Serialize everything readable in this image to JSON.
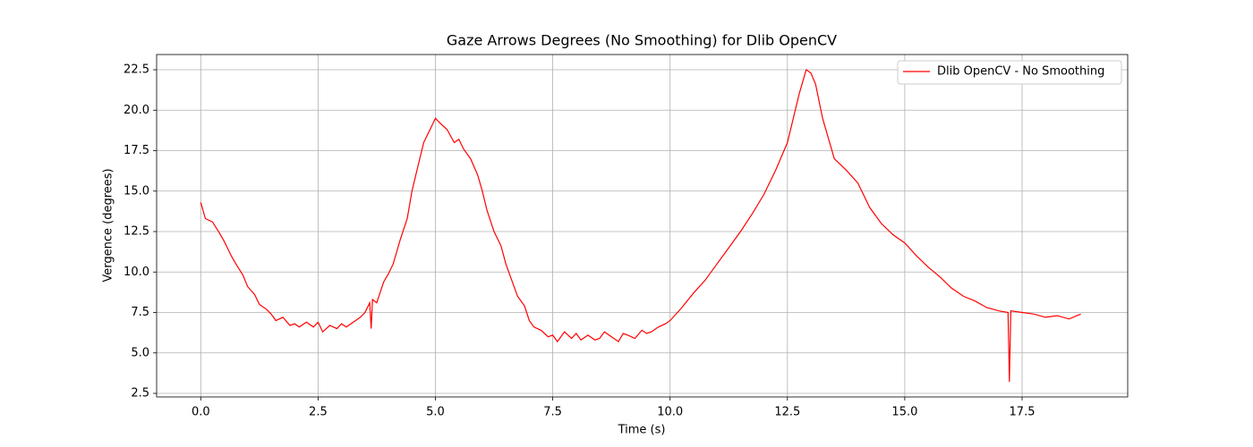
{
  "chart_data": {
    "type": "line",
    "title": "Gaze Arrows Degrees (No Smoothing) for Dlib OpenCV",
    "x_label": "Time (s)",
    "y_label": "Vergence (degrees)",
    "x": [
      0.0,
      0.05,
      0.1,
      0.25,
      0.4,
      0.5,
      0.65,
      0.75,
      0.9,
      1.0,
      1.15,
      1.25,
      1.4,
      1.5,
      1.6,
      1.75,
      1.9,
      2.0,
      2.1,
      2.25,
      2.4,
      2.5,
      2.6,
      2.75,
      2.9,
      3.0,
      3.1,
      3.25,
      3.4,
      3.5,
      3.6,
      3.63,
      3.66,
      3.75,
      3.9,
      4.0,
      4.1,
      4.25,
      4.4,
      4.5,
      4.6,
      4.75,
      4.9,
      5.0,
      5.1,
      5.25,
      5.4,
      5.5,
      5.6,
      5.75,
      5.9,
      6.0,
      6.1,
      6.25,
      6.4,
      6.5,
      6.6,
      6.75,
      6.9,
      7.0,
      7.1,
      7.25,
      7.4,
      7.5,
      7.6,
      7.75,
      7.9,
      8.0,
      8.1,
      8.25,
      8.4,
      8.5,
      8.6,
      8.75,
      8.9,
      9.0,
      9.1,
      9.25,
      9.4,
      9.5,
      9.6,
      9.75,
      9.9,
      10.0,
      10.25,
      10.5,
      10.75,
      11.0,
      11.25,
      11.5,
      11.75,
      12.0,
      12.25,
      12.5,
      12.75,
      12.9,
      13.0,
      13.1,
      13.25,
      13.5,
      13.75,
      14.0,
      14.25,
      14.5,
      14.75,
      15.0,
      15.25,
      15.5,
      15.75,
      16.0,
      16.25,
      16.5,
      16.75,
      17.0,
      17.2,
      17.23,
      17.26,
      17.5,
      17.75,
      18.0,
      18.25,
      18.5,
      18.75
    ],
    "series": [
      {
        "name": "Dlib OpenCV - No Smoothing",
        "color": "#ff0000",
        "values": [
          14.3,
          13.8,
          13.3,
          13.1,
          12.4,
          11.9,
          11.0,
          10.5,
          9.8,
          9.1,
          8.6,
          8.0,
          7.7,
          7.4,
          7.0,
          7.2,
          6.7,
          6.8,
          6.6,
          6.9,
          6.6,
          6.9,
          6.3,
          6.7,
          6.5,
          6.8,
          6.6,
          6.9,
          7.2,
          7.5,
          8.1,
          6.5,
          8.3,
          8.1,
          9.4,
          9.9,
          10.5,
          12.0,
          13.3,
          15.0,
          16.2,
          18.0,
          18.9,
          19.5,
          19.2,
          18.8,
          18.0,
          18.2,
          17.6,
          17.0,
          16.0,
          15.0,
          13.8,
          12.5,
          11.6,
          10.5,
          9.7,
          8.5,
          7.9,
          7.0,
          6.6,
          6.4,
          6.0,
          6.1,
          5.7,
          6.3,
          5.9,
          6.2,
          5.8,
          6.1,
          5.8,
          5.9,
          6.3,
          6.0,
          5.7,
          6.2,
          6.1,
          5.9,
          6.4,
          6.2,
          6.3,
          6.6,
          6.8,
          7.0,
          7.8,
          8.7,
          9.5,
          10.5,
          11.5,
          12.5,
          13.6,
          14.8,
          16.3,
          18.0,
          21.0,
          22.5,
          22.3,
          21.6,
          19.5,
          17.0,
          16.3,
          15.5,
          14.0,
          13.0,
          12.3,
          11.8,
          11.0,
          10.3,
          9.7,
          9.0,
          8.5,
          8.2,
          7.8,
          7.6,
          7.5,
          3.2,
          7.6,
          7.5,
          7.4,
          7.2,
          7.3,
          7.1,
          7.4
        ]
      }
    ],
    "xlim": [
      -0.94,
      19.75
    ],
    "ylim": [
      2.28,
      23.44
    ],
    "xticks": [
      {
        "value": 0,
        "label": "0.0"
      },
      2.5,
      {
        "value": 5,
        "label": "5.0"
      },
      7.5,
      {
        "value": 10,
        "label": "10.0"
      },
      12.5,
      {
        "value": 15,
        "label": "15.0"
      },
      17.5
    ],
    "yticks": [
      2.5,
      {
        "value": 5,
        "label": "5.0"
      },
      7.5,
      {
        "value": 10,
        "label": "10.0"
      },
      12.5,
      {
        "value": 15,
        "label": "15.0"
      },
      17.5,
      {
        "value": 20,
        "label": "20.0"
      },
      22.5
    ],
    "grid": true,
    "legend": "upper right"
  }
}
